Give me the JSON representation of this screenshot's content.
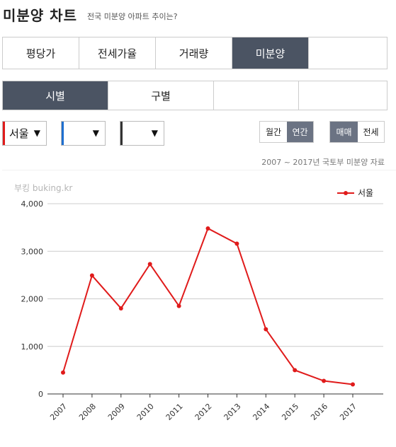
{
  "header": {
    "title": "미분양 차트",
    "subtitle": "전국 미분양 아파트 추이는?"
  },
  "main_tabs": [
    {
      "label": "평당가",
      "active": false
    },
    {
      "label": "전세가율",
      "active": false
    },
    {
      "label": "거래량",
      "active": false
    },
    {
      "label": "미분양",
      "active": true
    },
    {
      "label": "",
      "active": false
    }
  ],
  "sub_tabs": [
    {
      "label": "시별",
      "active": true
    },
    {
      "label": "구별",
      "active": false
    },
    {
      "label": "",
      "active": false
    },
    {
      "label": "",
      "active": false
    }
  ],
  "selects": [
    {
      "value": "서울",
      "color": "#e01b1b"
    },
    {
      "value": "",
      "color": "#1e6fd0"
    },
    {
      "value": "",
      "color": "#333333"
    }
  ],
  "period_toggle": {
    "monthly": "월간",
    "yearly": "연간",
    "active": "yearly"
  },
  "type_toggle": {
    "sale": "매매",
    "jeonse": "전세",
    "active": "sale"
  },
  "source_note": "2007 ~ 2017년 국토부 미분양 자료",
  "watermark": "부킹 buking.kr",
  "chart_data": {
    "type": "line",
    "categories": [
      "2007",
      "2008",
      "2009",
      "2010",
      "2011",
      "2012",
      "2013",
      "2014",
      "2015",
      "2016",
      "2017"
    ],
    "series": [
      {
        "name": "서울",
        "color": "#e01b1b",
        "values": [
          450,
          2490,
          1800,
          2730,
          1850,
          3480,
          3160,
          1360,
          500,
          275,
          200
        ]
      }
    ],
    "ylim": [
      0,
      4000
    ],
    "yticks": [
      0,
      1000,
      2000,
      3000,
      4000
    ],
    "ytick_labels": [
      "0",
      "1,000",
      "2,000",
      "3,000",
      "4,000"
    ],
    "grid": true,
    "legend": "top-right"
  }
}
